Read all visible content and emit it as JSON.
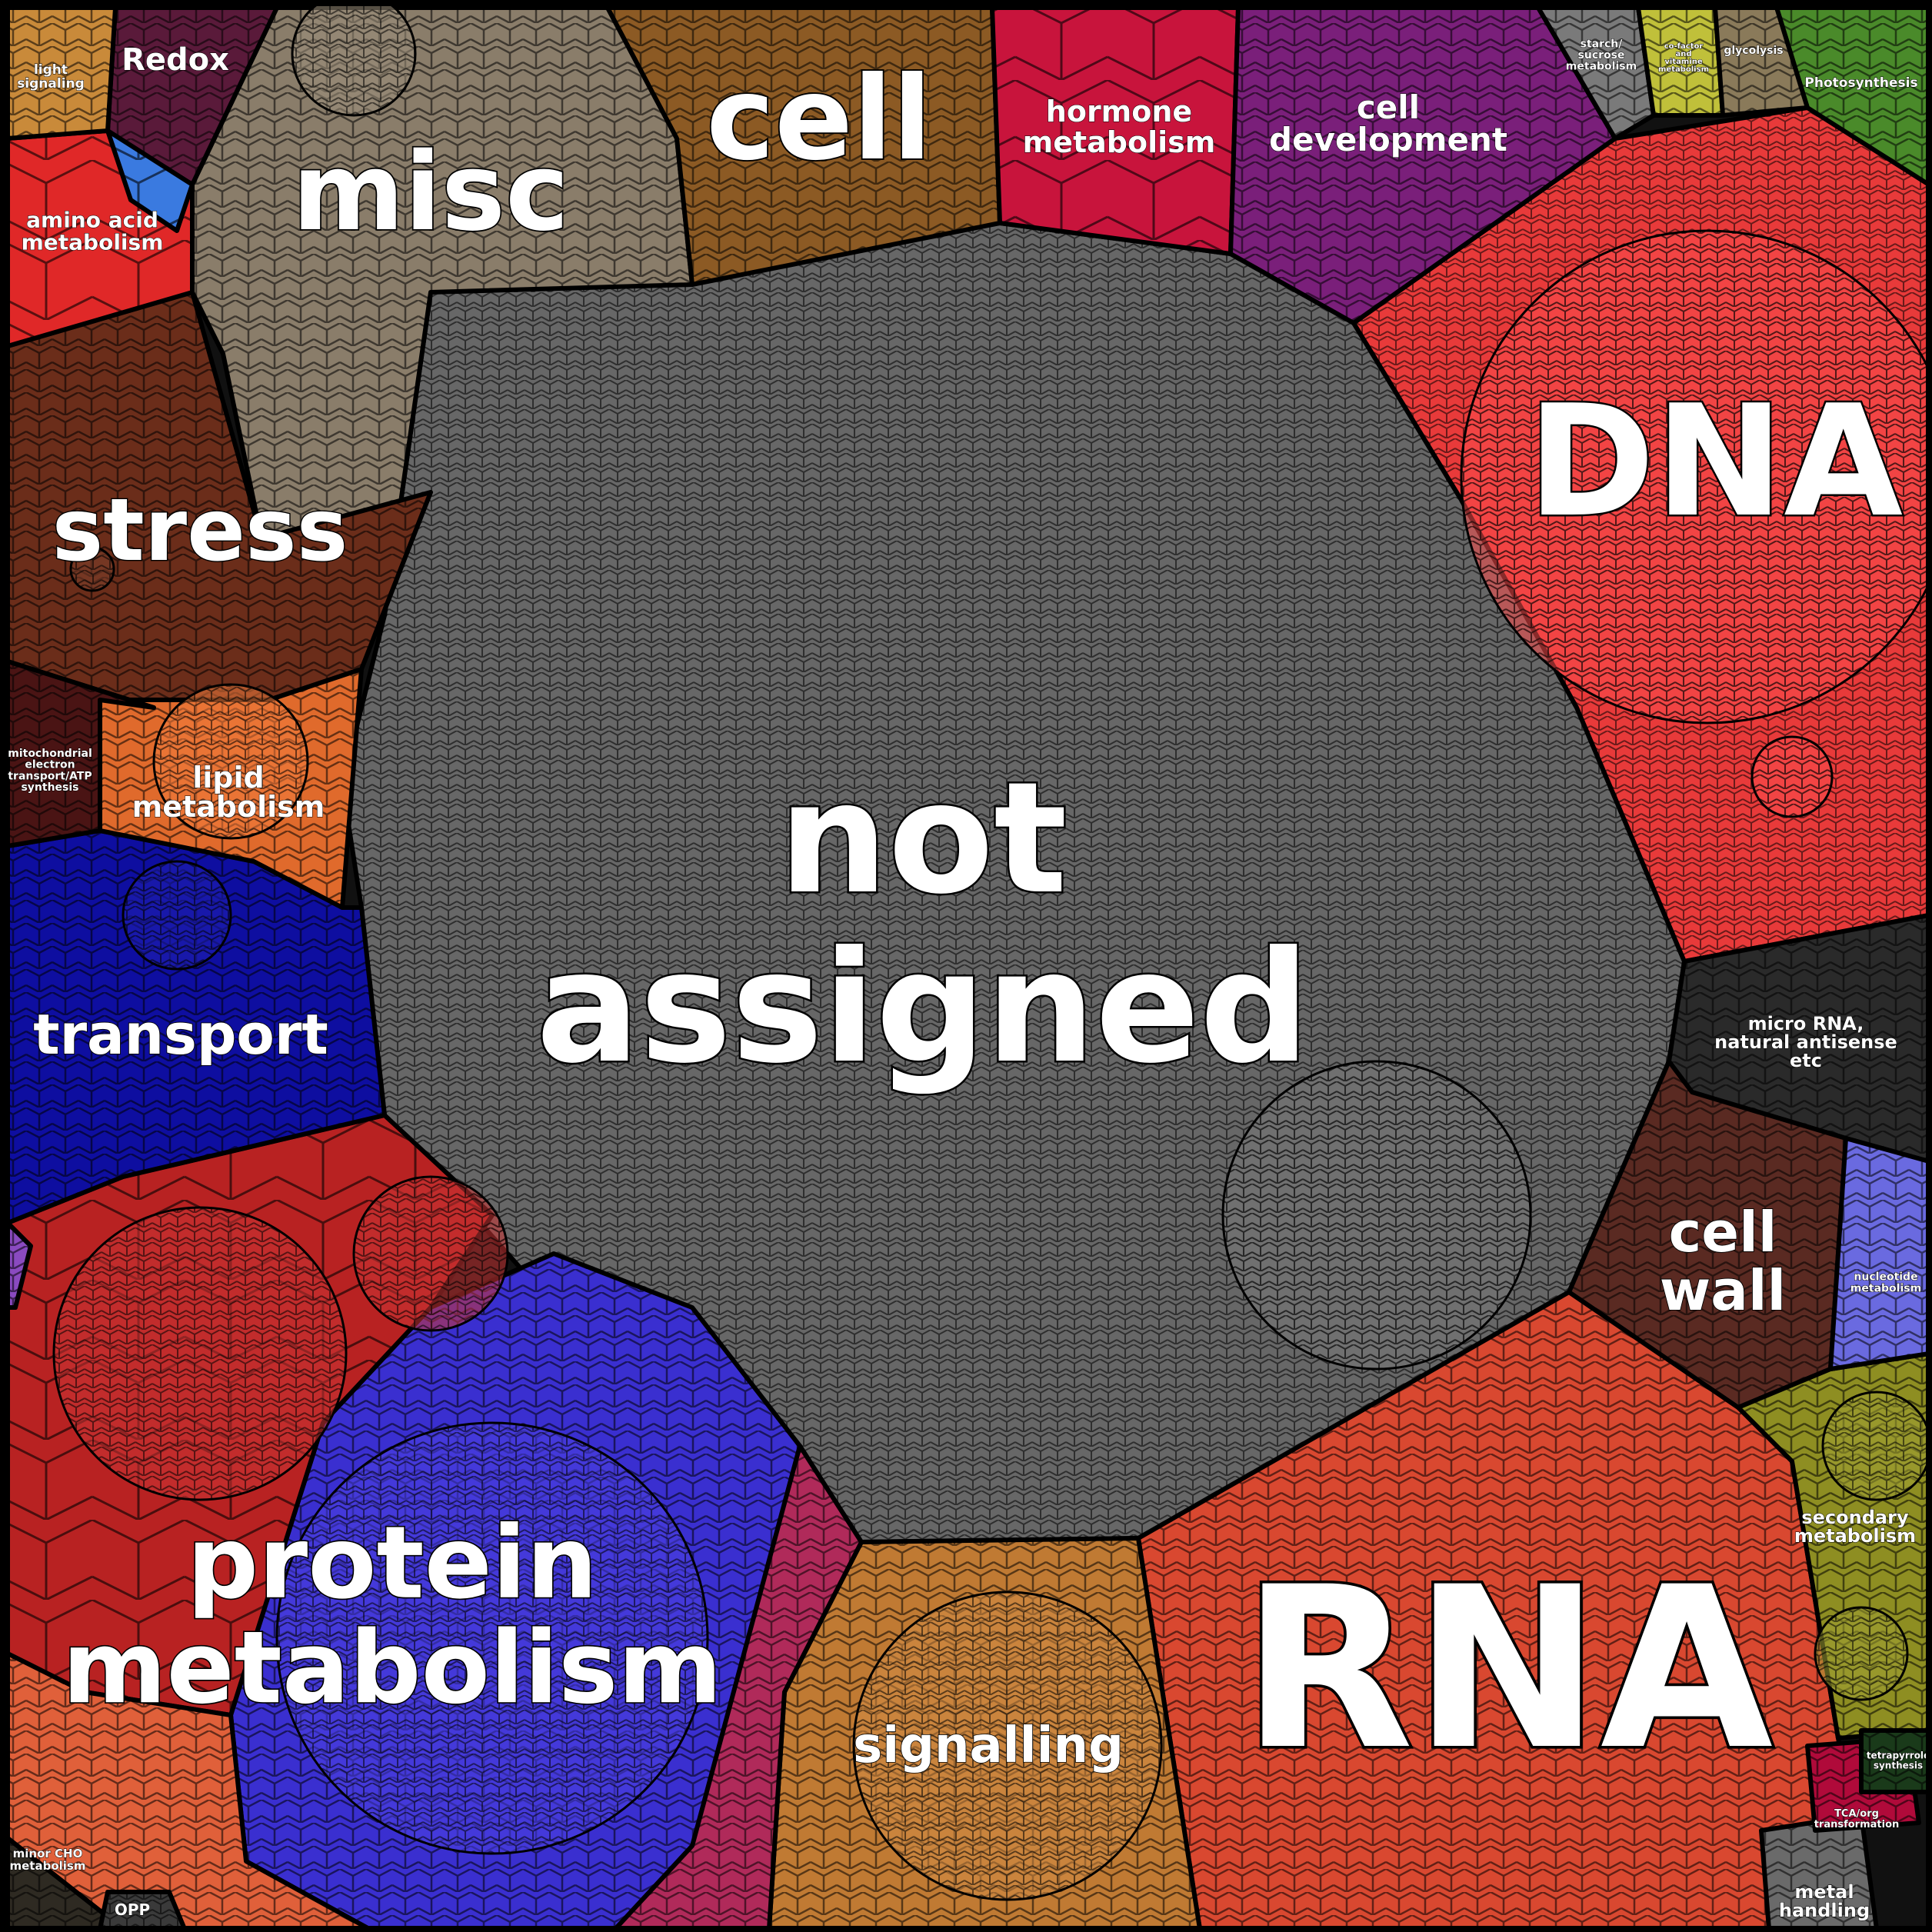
{
  "chart_data": {
    "type": "voronoi-treemap",
    "title": "",
    "colors": {
      "background": "#111111",
      "cell_border": "#000000",
      "texture_line": "#000000"
    },
    "categories": [
      {
        "id": "not-assigned",
        "name": "not assigned",
        "lines": [
          "not",
          "assigned"
        ],
        "color": "#676767"
      },
      {
        "id": "rna",
        "name": "RNA",
        "lines": [
          "RNA"
        ],
        "color": "#d94830"
      },
      {
        "id": "dna",
        "name": "DNA",
        "lines": [
          "DNA"
        ],
        "color": "#e83a3a"
      },
      {
        "id": "protein-metabolism",
        "name": "protein metabolism",
        "lines": [
          "protein",
          "metabolism"
        ],
        "color": "#3a2fd0"
      },
      {
        "id": "protein-red",
        "name": "",
        "lines": [],
        "color": "#b82222"
      },
      {
        "id": "misc",
        "name": "misc",
        "lines": [
          "misc"
        ],
        "color": "#8a7d6a"
      },
      {
        "id": "stress",
        "name": "stress",
        "lines": [
          "stress"
        ],
        "color": "#6b2d1a"
      },
      {
        "id": "cell",
        "name": "cell",
        "lines": [
          "cell"
        ],
        "color": "#8c5a24"
      },
      {
        "id": "transport",
        "name": "transport",
        "lines": [
          "transport"
        ],
        "color": "#0e0ea0"
      },
      {
        "id": "signalling",
        "name": "signalling",
        "lines": [
          "signalling"
        ],
        "color": "#c07a33"
      },
      {
        "id": "hormone-metabolism",
        "name": "hormone metabolism",
        "lines": [
          "hormone",
          "metabolism"
        ],
        "color": "#c8143c"
      },
      {
        "id": "cell-development",
        "name": "cell development",
        "lines": [
          "cell",
          "development"
        ],
        "color": "#7a1f7a"
      },
      {
        "id": "micro-rna",
        "name": "micro RNA, natural antisense etc",
        "lines": [
          "micro RNA,",
          "natural antisense",
          "etc"
        ],
        "color": "#2a2a2a"
      },
      {
        "id": "cell-wall",
        "name": "cell wall",
        "lines": [
          "cell",
          "wall"
        ],
        "color": "#5a2a22"
      },
      {
        "id": "lipid-metabolism",
        "name": "lipid metabolism",
        "lines": [
          "lipid",
          "metabolism"
        ],
        "color": "#e06a2c"
      },
      {
        "id": "secondary-metabolism",
        "name": "secondary metabolism",
        "lines": [
          "secondary",
          "metabolism"
        ],
        "color": "#8e8e22"
      },
      {
        "id": "amino-acid-metabolism",
        "name": "amino acid metabolism",
        "lines": [
          "amino acid",
          "metabolism"
        ],
        "color": "#e02828"
      },
      {
        "id": "nucleotide-metabolism",
        "name": "nucleotide metabolism",
        "lines": [
          "nucleotide",
          "metabolism"
        ],
        "color": "#6a6ae0"
      },
      {
        "id": "mitochondrial",
        "name": "mitochondrial electron transport/ATP synthesis",
        "lines": [
          "mitochondrial",
          "electron",
          "transport/ATP",
          "synthesis"
        ],
        "color": "#4a1414"
      },
      {
        "id": "redox",
        "name": "Redox",
        "lines": [
          "Redox"
        ],
        "color": "#5a1a3a"
      },
      {
        "id": "light-signaling",
        "name": "light signaling",
        "lines": [
          "light",
          "signaling"
        ],
        "color": "#c98a3a"
      },
      {
        "id": "photosynthesis",
        "name": "Photosynthesis",
        "lines": [
          "Photosynthesis"
        ],
        "color": "#4a8a2a"
      },
      {
        "id": "magenta-region",
        "name": "",
        "lines": [],
        "color": "#b02a5a"
      },
      {
        "id": "coral-region",
        "name": "",
        "lines": [],
        "color": "#e0603a"
      },
      {
        "id": "minor-cho",
        "name": "minor CHO metabolism",
        "lines": [
          "minor CHO",
          "metabolism"
        ],
        "color": "#2e2a22"
      },
      {
        "id": "opp",
        "name": "OPP",
        "lines": [
          "OPP"
        ],
        "color": "#3a3a3a"
      },
      {
        "id": "metal-handling",
        "name": "metal handling",
        "lines": [
          "metal",
          "handling"
        ],
        "color": "#6a6a6a"
      },
      {
        "id": "tca",
        "name": "TCA/org transformation",
        "lines": [
          "TCA/org",
          "transformation"
        ],
        "color": "#b00a3a"
      },
      {
        "id": "tetrapyrrole",
        "name": "tetrapyrrole synthesis",
        "lines": [
          "tetrapyrrole",
          "synthesis"
        ],
        "color": "#1a3a1a"
      },
      {
        "id": "starch-sucrose",
        "name": "starch/sucrose metabolism",
        "lines": [
          "starch/",
          "sucrose",
          "metabolism"
        ],
        "color": "#7a7a7a"
      },
      {
        "id": "co-factor",
        "name": "co-factor and vitamine metabolism",
        "lines": [
          "co-factor",
          "and",
          "vitamine",
          "metabolism"
        ],
        "color": "#c0c03a"
      },
      {
        "id": "glycolysis",
        "name": "glycolysis",
        "lines": [
          "glycolysis"
        ],
        "color": "#8a7a5a"
      },
      {
        "id": "blue-mid",
        "name": "",
        "lines": [],
        "color": "#3a7ae0"
      },
      {
        "id": "small-purple",
        "name": "",
        "lines": [],
        "color": "#8a4ac0"
      }
    ]
  }
}
